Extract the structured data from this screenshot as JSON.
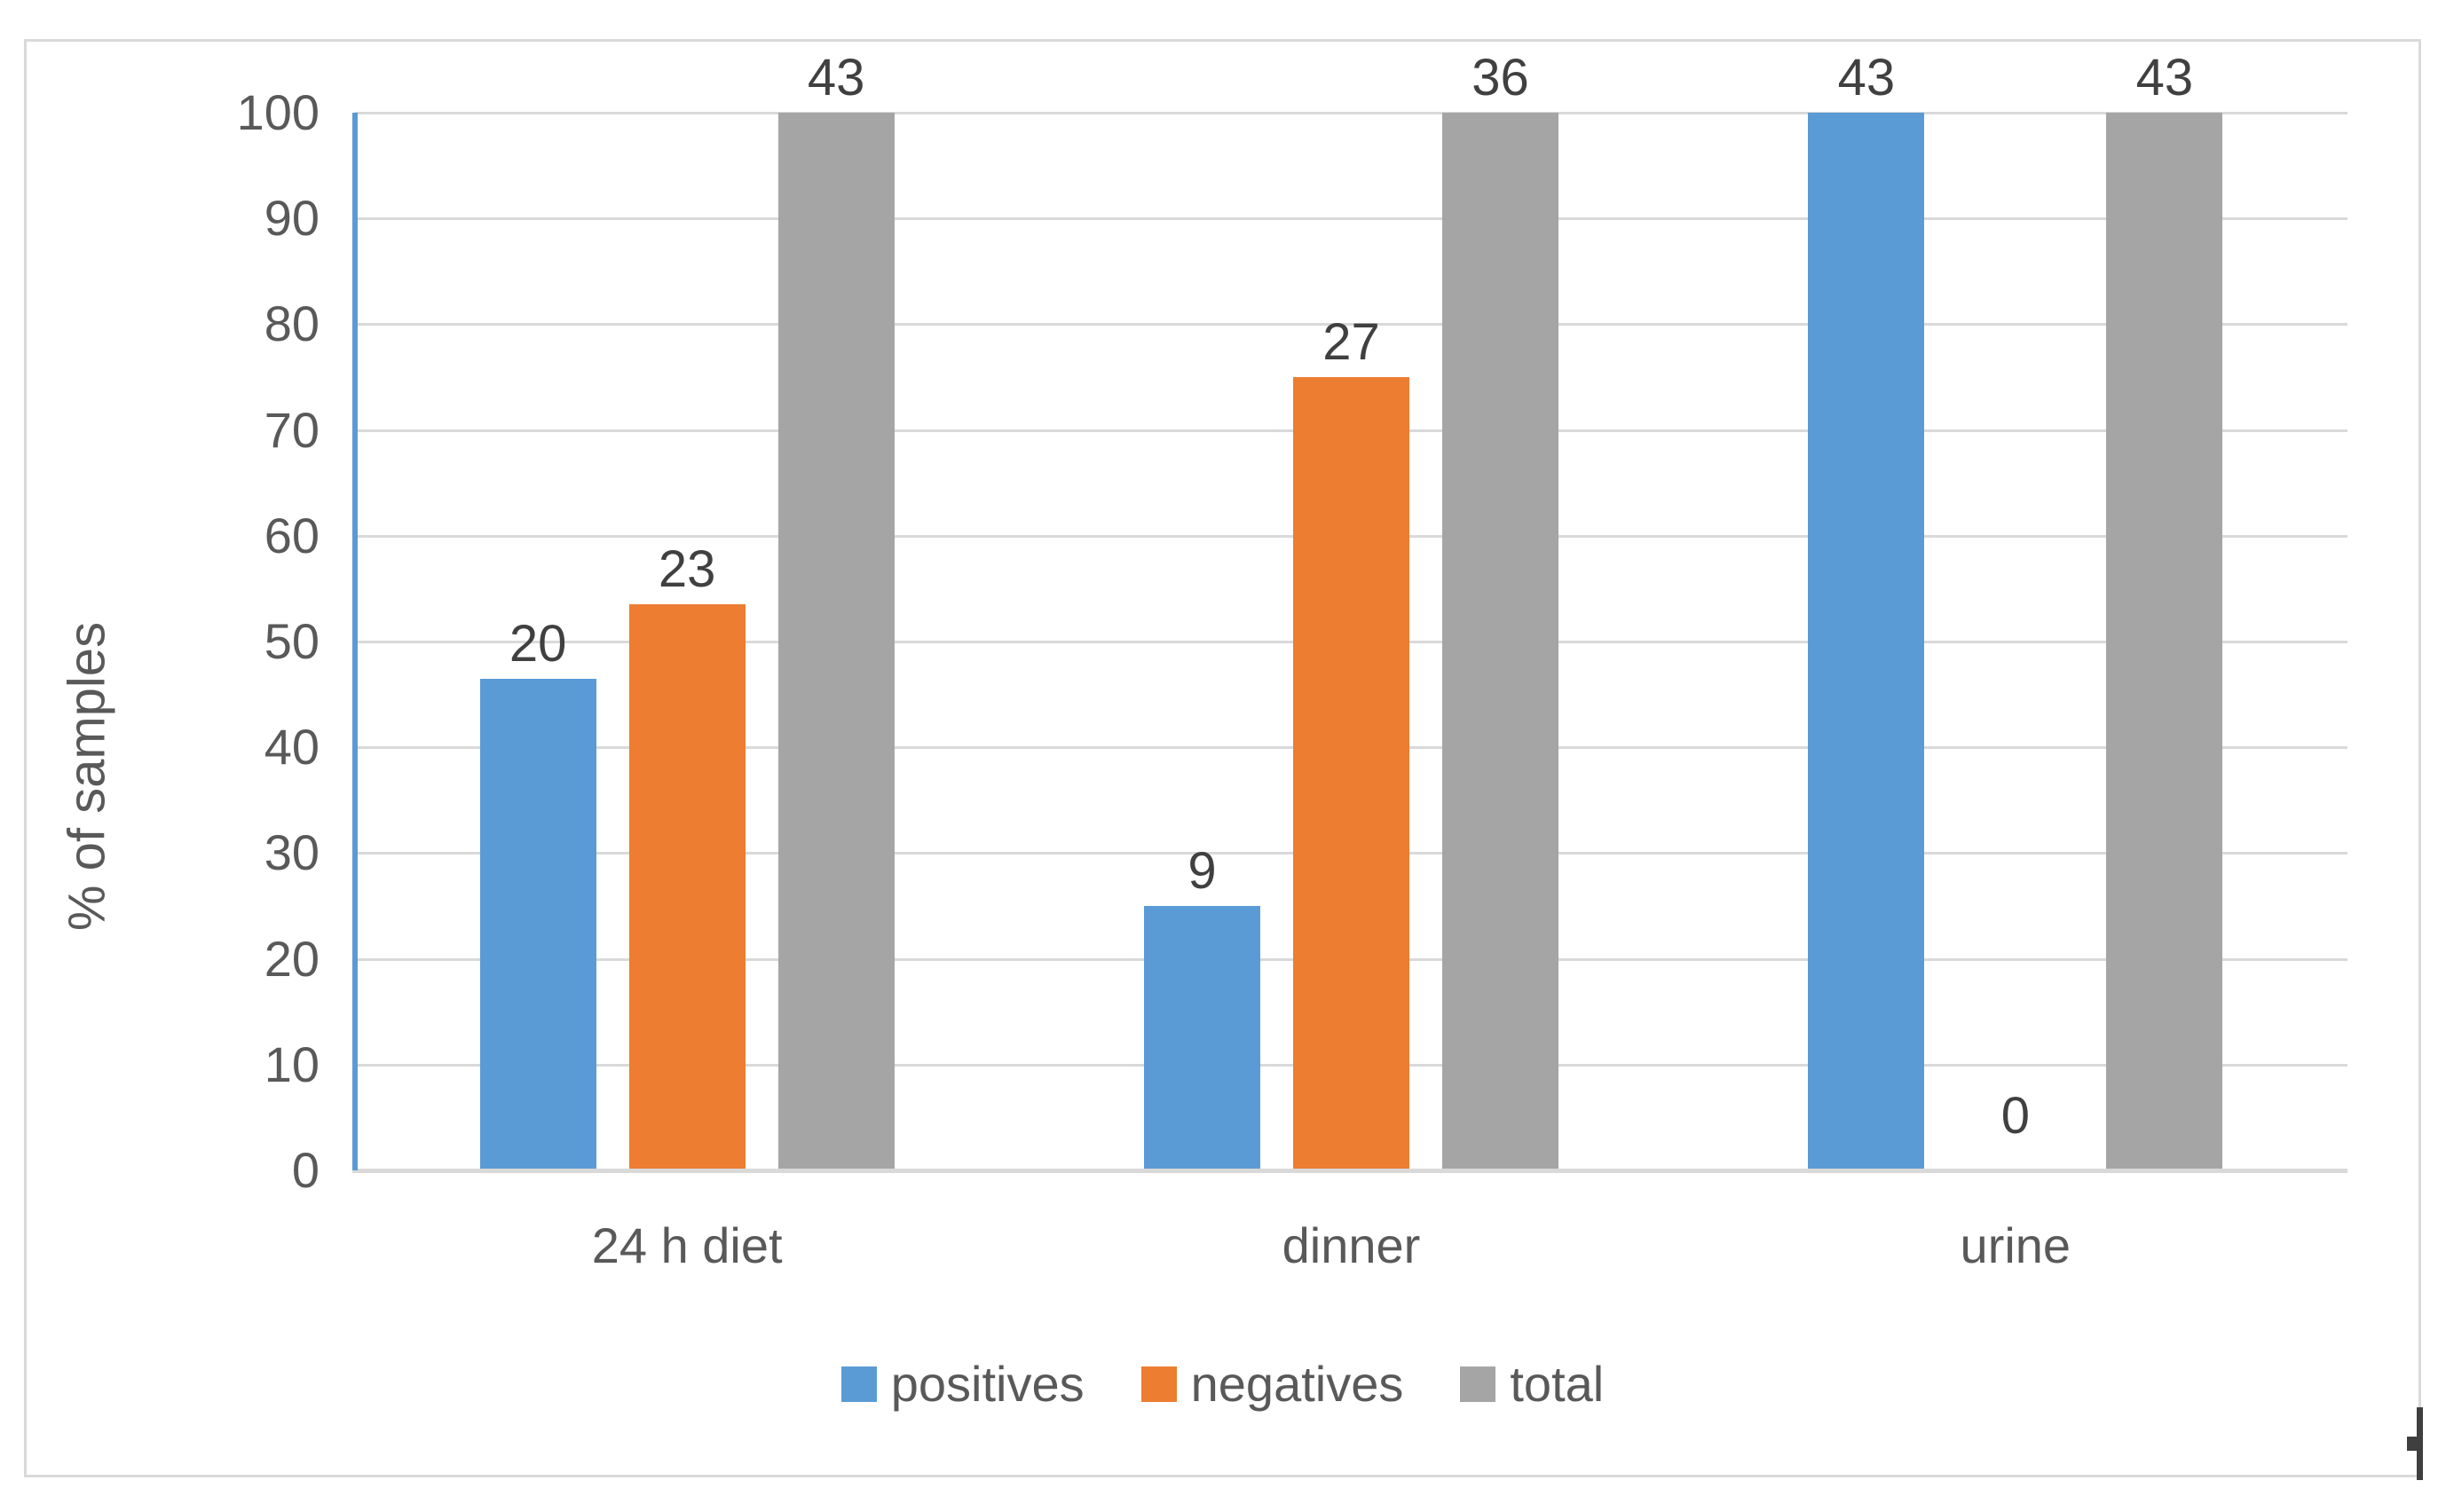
{
  "chart_data": {
    "type": "bar",
    "title": "",
    "ylabel": "% of samples",
    "xlabel": "",
    "ylim": [
      0,
      100
    ],
    "yticks": [
      0,
      10,
      20,
      30,
      40,
      50,
      60,
      70,
      80,
      90,
      100
    ],
    "grid": true,
    "legend_position": "bottom",
    "categories": [
      "24 h diet",
      "dinner",
      "urine"
    ],
    "series": [
      {
        "name": "positives",
        "color": "#5B9BD5",
        "counts": [
          20,
          9,
          43
        ],
        "pct_heights": [
          46.5,
          25,
          100
        ]
      },
      {
        "name": "negatives",
        "color": "#ED7D31",
        "counts": [
          23,
          27,
          0
        ],
        "pct_heights": [
          53.5,
          75,
          0
        ]
      },
      {
        "name": "total",
        "color": "#A5A5A5",
        "counts": [
          43,
          36,
          43
        ],
        "pct_heights": [
          100,
          100,
          100
        ]
      }
    ],
    "data_label_note": "labels above bars show sample counts; bar heights show % of samples"
  },
  "colors": {
    "axis_line_blue": "#5B9BD5",
    "gridline": "#D9D9D9",
    "frame_border": "#D9D9D9",
    "axis_text": "#595959",
    "data_label_text": "#404040",
    "background": "#ffffff",
    "cursor_mark": "#3f3f3f"
  }
}
